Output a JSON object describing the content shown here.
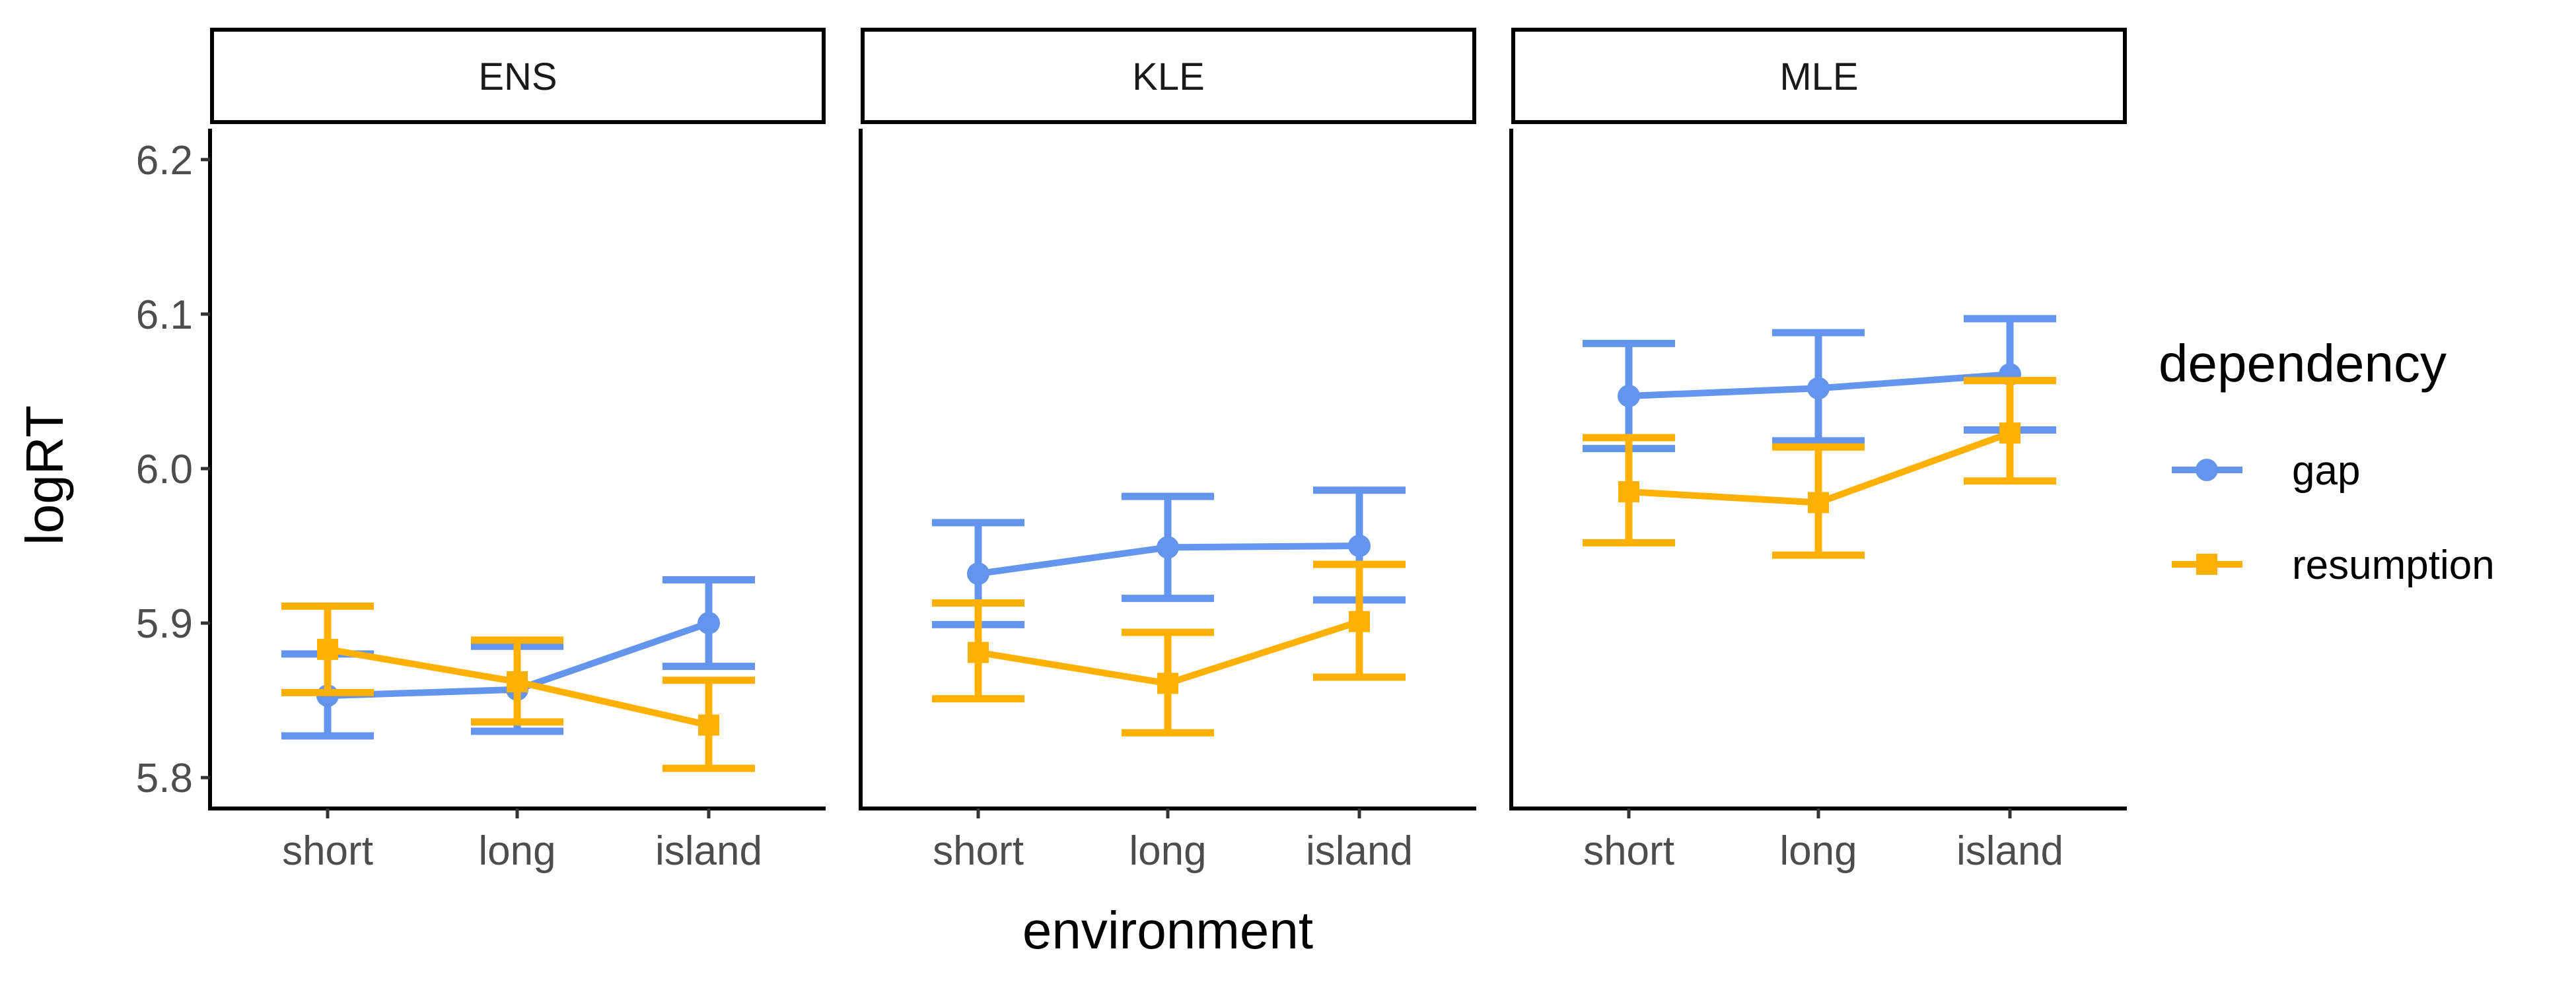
{
  "chart_data": {
    "type": "line",
    "facet_variable": "group",
    "facets": [
      "ENS",
      "KLE",
      "MLE"
    ],
    "categories": [
      "short",
      "long",
      "island"
    ],
    "xlabel": "environment",
    "ylabel": "logRT",
    "ylim": [
      5.78,
      6.22
    ],
    "yticks": [
      "5.8",
      "5.9",
      "6.0",
      "6.1",
      "6.2"
    ],
    "legend": {
      "title": "dependency",
      "position": "right",
      "entries": [
        "gap",
        "resumption"
      ]
    },
    "series": [
      {
        "name": "gap",
        "color": "#6495ED",
        "marker": "circle",
        "panels": [
          {
            "facet": "ENS",
            "values": [
              5.853,
              5.857,
              5.9
            ],
            "ci_low": [
              5.827,
              5.83,
              5.872
            ],
            "ci_high": [
              5.88,
              5.885,
              5.928
            ]
          },
          {
            "facet": "KLE",
            "values": [
              5.932,
              5.949,
              5.95
            ],
            "ci_low": [
              5.899,
              5.916,
              5.915
            ],
            "ci_high": [
              5.965,
              5.982,
              5.986
            ]
          },
          {
            "facet": "MLE",
            "values": [
              6.047,
              6.052,
              6.061
            ],
            "ci_low": [
              6.013,
              6.018,
              6.025
            ],
            "ci_high": [
              6.081,
              6.088,
              6.097
            ]
          }
        ]
      },
      {
        "name": "resumption",
        "color": "#FFB000",
        "marker": "square",
        "panels": [
          {
            "facet": "ENS",
            "values": [
              5.883,
              5.862,
              5.834
            ],
            "ci_low": [
              5.855,
              5.836,
              5.806
            ],
            "ci_high": [
              5.911,
              5.889,
              5.863
            ]
          },
          {
            "facet": "KLE",
            "values": [
              5.881,
              5.861,
              5.901
            ],
            "ci_low": [
              5.851,
              5.829,
              5.865
            ],
            "ci_high": [
              5.913,
              5.894,
              5.938
            ]
          },
          {
            "facet": "MLE",
            "values": [
              5.985,
              5.978,
              6.023
            ],
            "ci_low": [
              5.952,
              5.944,
              5.992
            ],
            "ci_high": [
              6.02,
              6.014,
              6.057
            ]
          }
        ]
      }
    ]
  }
}
